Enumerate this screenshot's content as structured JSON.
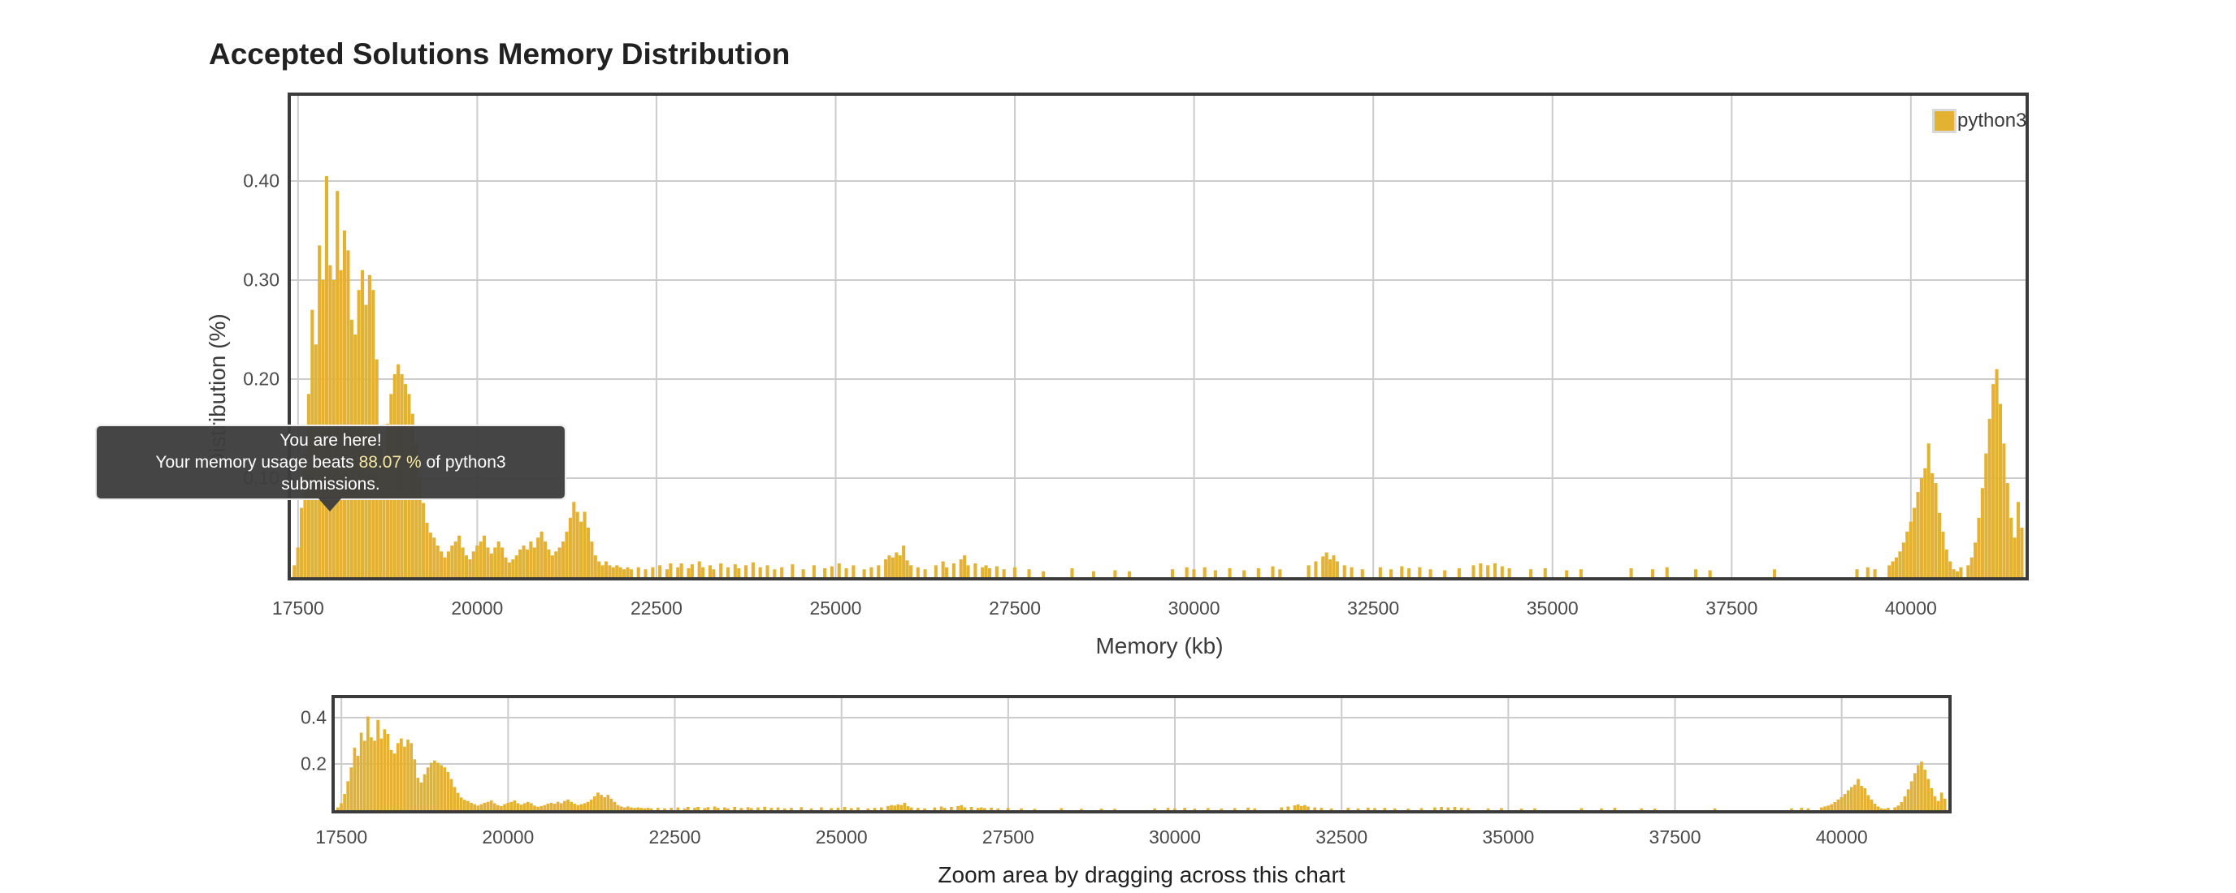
{
  "title": "Accepted Solutions Memory Distribution",
  "legend": {
    "label": "python3"
  },
  "tooltip": {
    "line1": "You are here!",
    "line2_prefix": "Your memory usage beats ",
    "percent": "88.07 %",
    "line2_suffix": " of python3 submissions."
  },
  "colors": {
    "bar": "#e4b233",
    "grid": "#cccccc",
    "frame": "#3b3b3b",
    "tick_text": "#4a4a4a",
    "tooltip_bg": "#3d3d3d",
    "tooltip_highlight": "#f7e9a4"
  },
  "main_chart": {
    "ylabel": "Distribution (%)",
    "xlabel": "Memory (kb)",
    "y_ticks": [
      {
        "label": "0.10",
        "value": 0.1
      },
      {
        "label": "0.20",
        "value": 0.2
      },
      {
        "label": "0.30",
        "value": 0.3
      },
      {
        "label": "0.40",
        "value": 0.4
      }
    ]
  },
  "overview_chart": {
    "caption": "Zoom area by dragging across this chart",
    "y_ticks": [
      {
        "label": "0.2",
        "value": 0.2
      },
      {
        "label": "0.4",
        "value": 0.4
      }
    ]
  },
  "x_ticks": [
    {
      "label": "17500",
      "value": 17500
    },
    {
      "label": "20000",
      "value": 20000
    },
    {
      "label": "22500",
      "value": 22500
    },
    {
      "label": "25000",
      "value": 25000
    },
    {
      "label": "27500",
      "value": 27500
    },
    {
      "label": "30000",
      "value": 30000
    },
    {
      "label": "32500",
      "value": 32500
    },
    {
      "label": "35000",
      "value": 35000
    },
    {
      "label": "37500",
      "value": 37500
    },
    {
      "label": "40000",
      "value": 40000
    }
  ],
  "chart_data": {
    "type": "bar",
    "series_name": "python3",
    "title": "Accepted Solutions Memory Distribution",
    "xlabel": "Memory (kb)",
    "ylabel": "Distribution (%)",
    "xlim": [
      17400,
      41600
    ],
    "ylim_main": [
      0,
      0.486
    ],
    "ylim_overview": [
      0,
      0.485
    ],
    "bin_width_kb": 50,
    "grid": true,
    "legend_position": "top-right",
    "points": [
      [
        17450,
        0.012
      ],
      [
        17500,
        0.03
      ],
      [
        17550,
        0.07
      ],
      [
        17600,
        0.125
      ],
      [
        17650,
        0.185
      ],
      [
        17700,
        0.27
      ],
      [
        17750,
        0.235
      ],
      [
        17800,
        0.335
      ],
      [
        17850,
        0.3
      ],
      [
        17900,
        0.405
      ],
      [
        17950,
        0.315
      ],
      [
        18000,
        0.3
      ],
      [
        18050,
        0.39
      ],
      [
        18100,
        0.31
      ],
      [
        18150,
        0.35
      ],
      [
        18200,
        0.33
      ],
      [
        18250,
        0.26
      ],
      [
        18300,
        0.245
      ],
      [
        18350,
        0.29
      ],
      [
        18400,
        0.31
      ],
      [
        18450,
        0.275
      ],
      [
        18500,
        0.305
      ],
      [
        18550,
        0.29
      ],
      [
        18600,
        0.22
      ],
      [
        18650,
        0.14
      ],
      [
        18700,
        0.12
      ],
      [
        18750,
        0.155
      ],
      [
        18800,
        0.185
      ],
      [
        18850,
        0.205
      ],
      [
        18900,
        0.215
      ],
      [
        18950,
        0.205
      ],
      [
        19000,
        0.195
      ],
      [
        19050,
        0.185
      ],
      [
        19100,
        0.165
      ],
      [
        19150,
        0.135
      ],
      [
        19200,
        0.1
      ],
      [
        19250,
        0.075
      ],
      [
        19300,
        0.055
      ],
      [
        19350,
        0.045
      ],
      [
        19400,
        0.04
      ],
      [
        19450,
        0.032
      ],
      [
        19500,
        0.026
      ],
      [
        19550,
        0.02
      ],
      [
        19600,
        0.026
      ],
      [
        19650,
        0.032
      ],
      [
        19700,
        0.036
      ],
      [
        19750,
        0.042
      ],
      [
        19800,
        0.03
      ],
      [
        19850,
        0.022
      ],
      [
        19900,
        0.018
      ],
      [
        19950,
        0.026
      ],
      [
        20000,
        0.032
      ],
      [
        20050,
        0.036
      ],
      [
        20100,
        0.042
      ],
      [
        20150,
        0.03
      ],
      [
        20200,
        0.024
      ],
      [
        20250,
        0.03
      ],
      [
        20300,
        0.036
      ],
      [
        20350,
        0.03
      ],
      [
        20400,
        0.02
      ],
      [
        20450,
        0.015
      ],
      [
        20500,
        0.018
      ],
      [
        20550,
        0.022
      ],
      [
        20600,
        0.028
      ],
      [
        20650,
        0.032
      ],
      [
        20700,
        0.028
      ],
      [
        20750,
        0.036
      ],
      [
        20800,
        0.03
      ],
      [
        20850,
        0.04
      ],
      [
        20900,
        0.046
      ],
      [
        20950,
        0.036
      ],
      [
        21000,
        0.028
      ],
      [
        21050,
        0.022
      ],
      [
        21100,
        0.026
      ],
      [
        21150,
        0.03
      ],
      [
        21200,
        0.036
      ],
      [
        21250,
        0.046
      ],
      [
        21300,
        0.06
      ],
      [
        21350,
        0.076
      ],
      [
        21400,
        0.066
      ],
      [
        21450,
        0.056
      ],
      [
        21500,
        0.066
      ],
      [
        21550,
        0.05
      ],
      [
        21600,
        0.036
      ],
      [
        21650,
        0.022
      ],
      [
        21700,
        0.016
      ],
      [
        21750,
        0.012
      ],
      [
        21800,
        0.016
      ],
      [
        21850,
        0.012
      ],
      [
        21900,
        0.01
      ],
      [
        21950,
        0.012
      ],
      [
        22000,
        0.01
      ],
      [
        22050,
        0.008
      ],
      [
        22100,
        0.01
      ],
      [
        22150,
        0.008
      ],
      [
        22250,
        0.01
      ],
      [
        22350,
        0.008
      ],
      [
        22450,
        0.01
      ],
      [
        22550,
        0.012
      ],
      [
        22650,
        0.008
      ],
      [
        22700,
        0.014
      ],
      [
        22800,
        0.01
      ],
      [
        22850,
        0.014
      ],
      [
        22950,
        0.009
      ],
      [
        23000,
        0.013
      ],
      [
        23100,
        0.016
      ],
      [
        23150,
        0.01
      ],
      [
        23250,
        0.012
      ],
      [
        23300,
        0.008
      ],
      [
        23400,
        0.014
      ],
      [
        23500,
        0.01
      ],
      [
        23600,
        0.013
      ],
      [
        23650,
        0.009
      ],
      [
        23750,
        0.012
      ],
      [
        23850,
        0.015
      ],
      [
        23950,
        0.01
      ],
      [
        24050,
        0.012
      ],
      [
        24150,
        0.008
      ],
      [
        24250,
        0.01
      ],
      [
        24400,
        0.013
      ],
      [
        24550,
        0.008
      ],
      [
        24700,
        0.012
      ],
      [
        24850,
        0.009
      ],
      [
        24950,
        0.011
      ],
      [
        25050,
        0.014
      ],
      [
        25150,
        0.009
      ],
      [
        25250,
        0.012
      ],
      [
        25400,
        0.008
      ],
      [
        25500,
        0.01
      ],
      [
        25600,
        0.012
      ],
      [
        25700,
        0.018
      ],
      [
        25750,
        0.022
      ],
      [
        25800,
        0.02
      ],
      [
        25850,
        0.025
      ],
      [
        25900,
        0.022
      ],
      [
        25950,
        0.032
      ],
      [
        26000,
        0.017
      ],
      [
        26050,
        0.012
      ],
      [
        26150,
        0.01
      ],
      [
        26250,
        0.008
      ],
      [
        26400,
        0.012
      ],
      [
        26500,
        0.016
      ],
      [
        26550,
        0.01
      ],
      [
        26650,
        0.014
      ],
      [
        26750,
        0.018
      ],
      [
        26800,
        0.022
      ],
      [
        26850,
        0.012
      ],
      [
        26950,
        0.014
      ],
      [
        27050,
        0.01
      ],
      [
        27100,
        0.012
      ],
      [
        27150,
        0.009
      ],
      [
        27250,
        0.011
      ],
      [
        27350,
        0.008
      ],
      [
        27500,
        0.01
      ],
      [
        27700,
        0.008
      ],
      [
        27900,
        0.006
      ],
      [
        28300,
        0.009
      ],
      [
        28600,
        0.006
      ],
      [
        28900,
        0.007
      ],
      [
        29100,
        0.006
      ],
      [
        29700,
        0.008
      ],
      [
        29900,
        0.01
      ],
      [
        30000,
        0.008
      ],
      [
        30150,
        0.01
      ],
      [
        30300,
        0.007
      ],
      [
        30500,
        0.009
      ],
      [
        30700,
        0.007
      ],
      [
        30900,
        0.009
      ],
      [
        31100,
        0.011
      ],
      [
        31200,
        0.008
      ],
      [
        31600,
        0.012
      ],
      [
        31700,
        0.016
      ],
      [
        31800,
        0.021
      ],
      [
        31850,
        0.025
      ],
      [
        31900,
        0.018
      ],
      [
        31950,
        0.022
      ],
      [
        32000,
        0.016
      ],
      [
        32100,
        0.012
      ],
      [
        32200,
        0.01
      ],
      [
        32350,
        0.008
      ],
      [
        32600,
        0.01
      ],
      [
        32750,
        0.008
      ],
      [
        32900,
        0.011
      ],
      [
        33000,
        0.009
      ],
      [
        33150,
        0.01
      ],
      [
        33300,
        0.008
      ],
      [
        33500,
        0.007
      ],
      [
        33700,
        0.009
      ],
      [
        33900,
        0.012
      ],
      [
        34000,
        0.014
      ],
      [
        34100,
        0.012
      ],
      [
        34200,
        0.014
      ],
      [
        34300,
        0.011
      ],
      [
        34400,
        0.009
      ],
      [
        34700,
        0.008
      ],
      [
        34900,
        0.009
      ],
      [
        35200,
        0.007
      ],
      [
        35400,
        0.008
      ],
      [
        36100,
        0.009
      ],
      [
        36400,
        0.008
      ],
      [
        36600,
        0.01
      ],
      [
        37000,
        0.008
      ],
      [
        37200,
        0.007
      ],
      [
        38100,
        0.008
      ],
      [
        39250,
        0.008
      ],
      [
        39400,
        0.01
      ],
      [
        39500,
        0.008
      ],
      [
        39700,
        0.012
      ],
      [
        39750,
        0.016
      ],
      [
        39800,
        0.02
      ],
      [
        39850,
        0.026
      ],
      [
        39900,
        0.035
      ],
      [
        39950,
        0.046
      ],
      [
        40000,
        0.056
      ],
      [
        40050,
        0.07
      ],
      [
        40100,
        0.086
      ],
      [
        40150,
        0.1
      ],
      [
        40200,
        0.11
      ],
      [
        40250,
        0.135
      ],
      [
        40300,
        0.105
      ],
      [
        40350,
        0.095
      ],
      [
        40400,
        0.065
      ],
      [
        40450,
        0.046
      ],
      [
        40500,
        0.028
      ],
      [
        40550,
        0.016
      ],
      [
        40600,
        0.008
      ],
      [
        40650,
        0.006
      ],
      [
        40700,
        0.01
      ],
      [
        40800,
        0.012
      ],
      [
        40850,
        0.02
      ],
      [
        40900,
        0.035
      ],
      [
        40950,
        0.06
      ],
      [
        41000,
        0.09
      ],
      [
        41050,
        0.125
      ],
      [
        41100,
        0.16
      ],
      [
        41150,
        0.195
      ],
      [
        41200,
        0.21
      ],
      [
        41250,
        0.175
      ],
      [
        41300,
        0.135
      ],
      [
        41350,
        0.095
      ],
      [
        41400,
        0.06
      ],
      [
        41450,
        0.04
      ],
      [
        41500,
        0.076
      ],
      [
        41550,
        0.05
      ]
    ]
  }
}
